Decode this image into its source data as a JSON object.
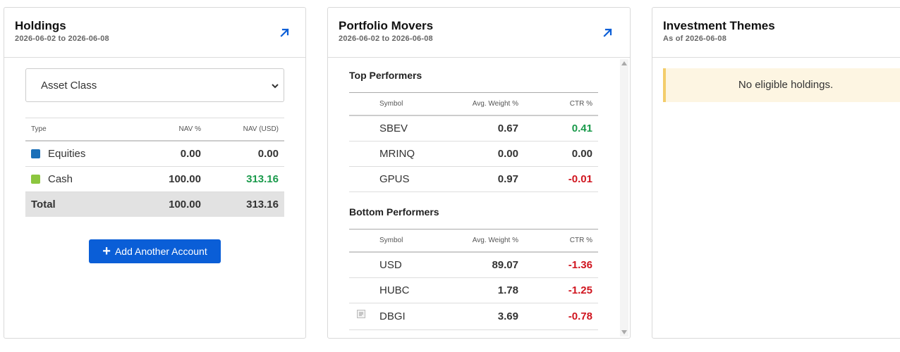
{
  "holdings": {
    "title": "Holdings",
    "date_range": "2026-06-02 to 2026-06-08",
    "group_by": {
      "selected": "Asset Class"
    },
    "columns": [
      "Type",
      "NAV %",
      "NAV (USD)"
    ],
    "rows": [
      {
        "type": "Equities",
        "nav_pct": "0.00",
        "nav_usd": "0.00",
        "color": "#1a6fb8"
      },
      {
        "type": "Cash",
        "nav_pct": "100.00",
        "nav_usd": "313.16",
        "color": "#8cc63f"
      }
    ],
    "total": {
      "label": "Total",
      "nav_pct": "100.00",
      "nav_usd": "313.16"
    },
    "add_button": "Add Another Account"
  },
  "movers": {
    "title": "Portfolio Movers",
    "date_range": "2026-06-02 to 2026-06-08",
    "columns": [
      "Symbol",
      "Avg. Weight %",
      "CTR %"
    ],
    "top": {
      "title": "Top Performers",
      "rows": [
        {
          "symbol": "SBEV",
          "weight": "0.67",
          "ctr": "0.41"
        },
        {
          "symbol": "MRINQ",
          "weight": "0.00",
          "ctr": "0.00"
        },
        {
          "symbol": "GPUS",
          "weight": "0.97",
          "ctr": "-0.01"
        }
      ]
    },
    "bottom": {
      "title": "Bottom Performers",
      "rows": [
        {
          "symbol": "USD",
          "weight": "89.07",
          "ctr": "-1.36"
        },
        {
          "symbol": "HUBC",
          "weight": "1.78",
          "ctr": "-1.25"
        },
        {
          "symbol": "DBGI",
          "weight": "3.69",
          "ctr": "-0.78"
        }
      ]
    }
  },
  "themes": {
    "title": "Investment Themes",
    "as_of": "As of 2026-06-08",
    "empty_message": "No eligible holdings."
  },
  "colors": {
    "accent": "#0a5ed7",
    "positive": "#1a9a4b",
    "negative": "#d0151f",
    "notice_bg": "#fdf5e2",
    "notice_border": "#f3cd6b"
  },
  "icons": [
    "expand-arrow-icon",
    "chevron-down-icon",
    "plus-icon",
    "document-icon"
  ]
}
